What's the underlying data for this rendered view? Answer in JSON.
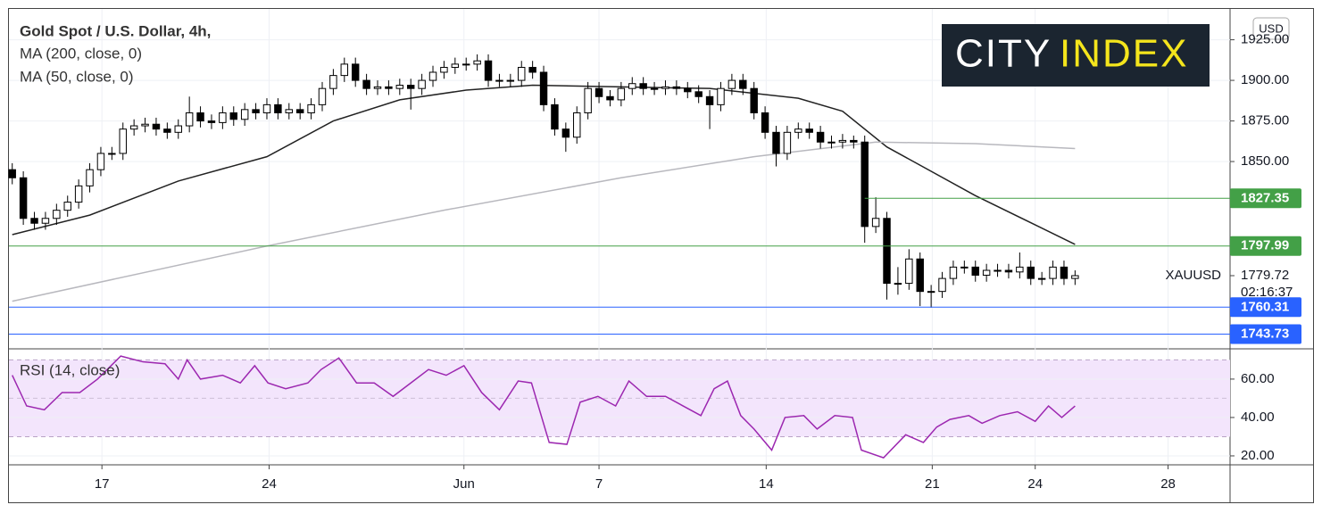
{
  "header": {
    "title": "Gold Spot / U.S. Dollar, 4h,",
    "ma200": "MA (200, close, 0)",
    "ma50": "MA (50, close, 0)",
    "currency": "USD"
  },
  "logo": {
    "city": "CITY",
    "index": "INDEX"
  },
  "chart_data": [
    {
      "type": "candlestick",
      "symbol": "XAUUSD",
      "last_price": 1779.72,
      "countdown": "02:16:37",
      "up_color": "#ffffff",
      "down_color": "#000000",
      "xlim": [
        -0.3,
        110
      ],
      "ylim": [
        1735.2,
        1944
      ],
      "xticks": [
        {
          "value": 8.1,
          "label": "17"
        },
        {
          "value": 23.2,
          "label": "24"
        },
        {
          "value": 40.8,
          "label": "Jun"
        },
        {
          "value": 53,
          "label": "7"
        },
        {
          "value": 68.1,
          "label": "14"
        },
        {
          "value": 83.1,
          "label": "21"
        },
        {
          "value": 92.4,
          "label": "24"
        },
        {
          "value": 104.4,
          "label": "28"
        }
      ],
      "yticks": [
        {
          "value": 1925,
          "label": "1925.00"
        },
        {
          "value": 1900,
          "label": "1900.00"
        },
        {
          "value": 1875,
          "label": "1875.00"
        },
        {
          "value": 1850,
          "label": "1850.00"
        }
      ],
      "grid": true,
      "open": [
        1845,
        1840,
        1815,
        1812,
        1815,
        1820,
        1825,
        1835,
        1845,
        1855,
        1855,
        1870,
        1872,
        1873,
        1870,
        1868,
        1872,
        1880,
        1875,
        1874,
        1880,
        1876,
        1882,
        1880,
        1885,
        1880,
        1882,
        1880,
        1885,
        1895,
        1903,
        1910,
        1900,
        1895,
        1896,
        1895,
        1897,
        1895,
        1900,
        1905,
        1908,
        1910,
        1910,
        1912,
        1900,
        1900,
        1900,
        1908,
        1905,
        1885,
        1870,
        1865,
        1880,
        1895,
        1890,
        1888,
        1895,
        1898,
        1895,
        1895,
        1896,
        1895,
        1893,
        1890,
        1885,
        1895,
        1900,
        1895,
        1880,
        1868,
        1855,
        1868,
        1870,
        1868,
        1862,
        1862,
        1863,
        1862,
        1810,
        1815,
        1775,
        1775,
        1790,
        1770,
        1770,
        1778,
        1785,
        1785,
        1780,
        1783,
        1783,
        1782,
        1785,
        1778,
        1778,
        1785,
        1778
      ],
      "high": [
        1849,
        1844,
        1819,
        1819,
        1824,
        1829,
        1839,
        1849,
        1859,
        1859,
        1874,
        1876,
        1877,
        1877,
        1874,
        1876,
        1890,
        1884,
        1879,
        1884,
        1884,
        1886,
        1886,
        1889,
        1889,
        1886,
        1886,
        1889,
        1899,
        1907,
        1914,
        1914,
        1904,
        1900,
        1900,
        1901,
        1901,
        1904,
        1909,
        1912,
        1914,
        1914,
        1916,
        1916,
        1904,
        1904,
        1912,
        1912,
        1909,
        1889,
        1874,
        1884,
        1899,
        1899,
        1894,
        1899,
        1902,
        1902,
        1899,
        1900,
        1900,
        1899,
        1897,
        1894,
        1899,
        1904,
        1904,
        1899,
        1884,
        1872,
        1872,
        1874,
        1874,
        1872,
        1866,
        1867,
        1866,
        1866,
        1828,
        1819,
        1785,
        1796,
        1794,
        1774,
        1782,
        1789,
        1789,
        1789,
        1787,
        1787,
        1787,
        1794,
        1789,
        1782,
        1789,
        1789,
        1783
      ],
      "low": [
        1836,
        1811,
        1808,
        1808,
        1811,
        1816,
        1821,
        1831,
        1841,
        1851,
        1851,
        1866,
        1868,
        1866,
        1864,
        1864,
        1868,
        1871,
        1870,
        1870,
        1872,
        1872,
        1876,
        1876,
        1876,
        1876,
        1876,
        1876,
        1881,
        1891,
        1899,
        1896,
        1891,
        1891,
        1891,
        1891,
        1882,
        1891,
        1896,
        1901,
        1904,
        1906,
        1906,
        1896,
        1896,
        1896,
        1896,
        1901,
        1881,
        1866,
        1856,
        1861,
        1876,
        1886,
        1884,
        1884,
        1891,
        1891,
        1891,
        1891,
        1891,
        1889,
        1886,
        1870,
        1881,
        1891,
        1891,
        1876,
        1864,
        1847,
        1851,
        1864,
        1864,
        1858,
        1858,
        1858,
        1858,
        1800,
        1806,
        1765,
        1768,
        1771,
        1761,
        1760,
        1766,
        1774,
        1781,
        1776,
        1776,
        1779,
        1778,
        1778,
        1774,
        1774,
        1774,
        1774,
        1774
      ],
      "close": [
        1840,
        1815,
        1812,
        1815,
        1820,
        1825,
        1835,
        1845,
        1855,
        1855,
        1870,
        1872,
        1873,
        1870,
        1868,
        1872,
        1880,
        1875,
        1874,
        1880,
        1876,
        1882,
        1880,
        1885,
        1880,
        1882,
        1880,
        1885,
        1895,
        1903,
        1910,
        1900,
        1895,
        1896,
        1895,
        1897,
        1895,
        1900,
        1905,
        1908,
        1910,
        1910,
        1912,
        1900,
        1900,
        1900,
        1908,
        1905,
        1885,
        1870,
        1865,
        1880,
        1895,
        1890,
        1888,
        1895,
        1898,
        1895,
        1895,
        1896,
        1895,
        1893,
        1890,
        1885,
        1895,
        1900,
        1895,
        1880,
        1868,
        1855,
        1868,
        1870,
        1868,
        1862,
        1862,
        1863,
        1862,
        1810,
        1815,
        1775,
        1775,
        1790,
        1770,
        1770,
        1778,
        1785,
        1785,
        1780,
        1783,
        1783,
        1782,
        1785,
        1778,
        1778,
        1785,
        1778,
        1779.72
      ],
      "series": [
        {
          "name": "MA (50, close, 0)",
          "color": "#222222",
          "x": [
            0,
            7,
            15,
            23,
            29,
            35,
            41,
            47,
            55,
            63,
            71,
            75,
            79,
            87,
            96
          ],
          "values": [
            1805,
            1817,
            1838,
            1853,
            1875,
            1888,
            1894,
            1897,
            1896,
            1895,
            1889,
            1881,
            1859,
            1829,
            1799
          ]
        },
        {
          "name": "MA (200, close, 0)",
          "color": "#b8b8be",
          "x": [
            0,
            23,
            39,
            55,
            67,
            78,
            87,
            96
          ],
          "values": [
            1764,
            1798,
            1820,
            1840,
            1853,
            1862,
            1861,
            1858
          ]
        }
      ],
      "levels": [
        {
          "value": 1827.35,
          "color": "#43a047",
          "from": 77
        },
        {
          "value": 1797.99,
          "color": "#43a047"
        },
        {
          "value": 1760.31,
          "color": "#2962ff"
        },
        {
          "value": 1743.73,
          "color": "#2962ff"
        }
      ]
    },
    {
      "type": "line",
      "title": "RSI (14, close)",
      "color": "#9c27b0",
      "xlim": [
        -0.3,
        110
      ],
      "ylim": [
        15.8,
        75.3
      ],
      "band": [
        30,
        70
      ],
      "midline": 50,
      "yticks": [
        {
          "value": 20,
          "label": "20.00"
        },
        {
          "value": 40,
          "label": "40.00"
        },
        {
          "value": 60,
          "label": "60.00"
        }
      ],
      "x": [
        0,
        1.3,
        2.9,
        4.5,
        6.1,
        7.7,
        9.8,
        11.8,
        13.8,
        15,
        15.8,
        17,
        19,
        20.6,
        21.9,
        23.1,
        24.7,
        26.7,
        27.9,
        29.5,
        31.1,
        32.7,
        34.4,
        36,
        37.6,
        39.2,
        40.8,
        42.4,
        44,
        45.7,
        46.9,
        48.5,
        50.1,
        51.3,
        52.9,
        54.5,
        55.7,
        57.3,
        59,
        60.6,
        62.2,
        63.4,
        64.6,
        65.8,
        67,
        68.6,
        69.8,
        71.5,
        72.7,
        74.3,
        75.9,
        76.7,
        78.7,
        80.7,
        82.3,
        83.5,
        84.7,
        86.4,
        87.6,
        89.2,
        90.8,
        92.4,
        93.6,
        94.8,
        96
      ],
      "values": [
        62,
        46,
        44,
        53,
        53,
        60,
        72,
        69,
        68,
        60,
        70,
        60,
        62,
        58,
        67,
        58,
        55,
        58,
        65,
        71,
        58,
        58,
        51,
        58,
        65,
        62,
        67,
        53,
        44,
        59,
        58,
        27,
        26,
        48,
        51,
        46,
        59,
        51,
        51,
        46,
        41,
        55,
        59,
        41,
        34,
        23,
        40,
        41,
        34,
        41,
        40,
        23,
        19,
        31,
        27,
        35,
        39,
        41,
        37,
        41,
        43,
        38,
        46,
        40,
        46
      ]
    }
  ]
}
